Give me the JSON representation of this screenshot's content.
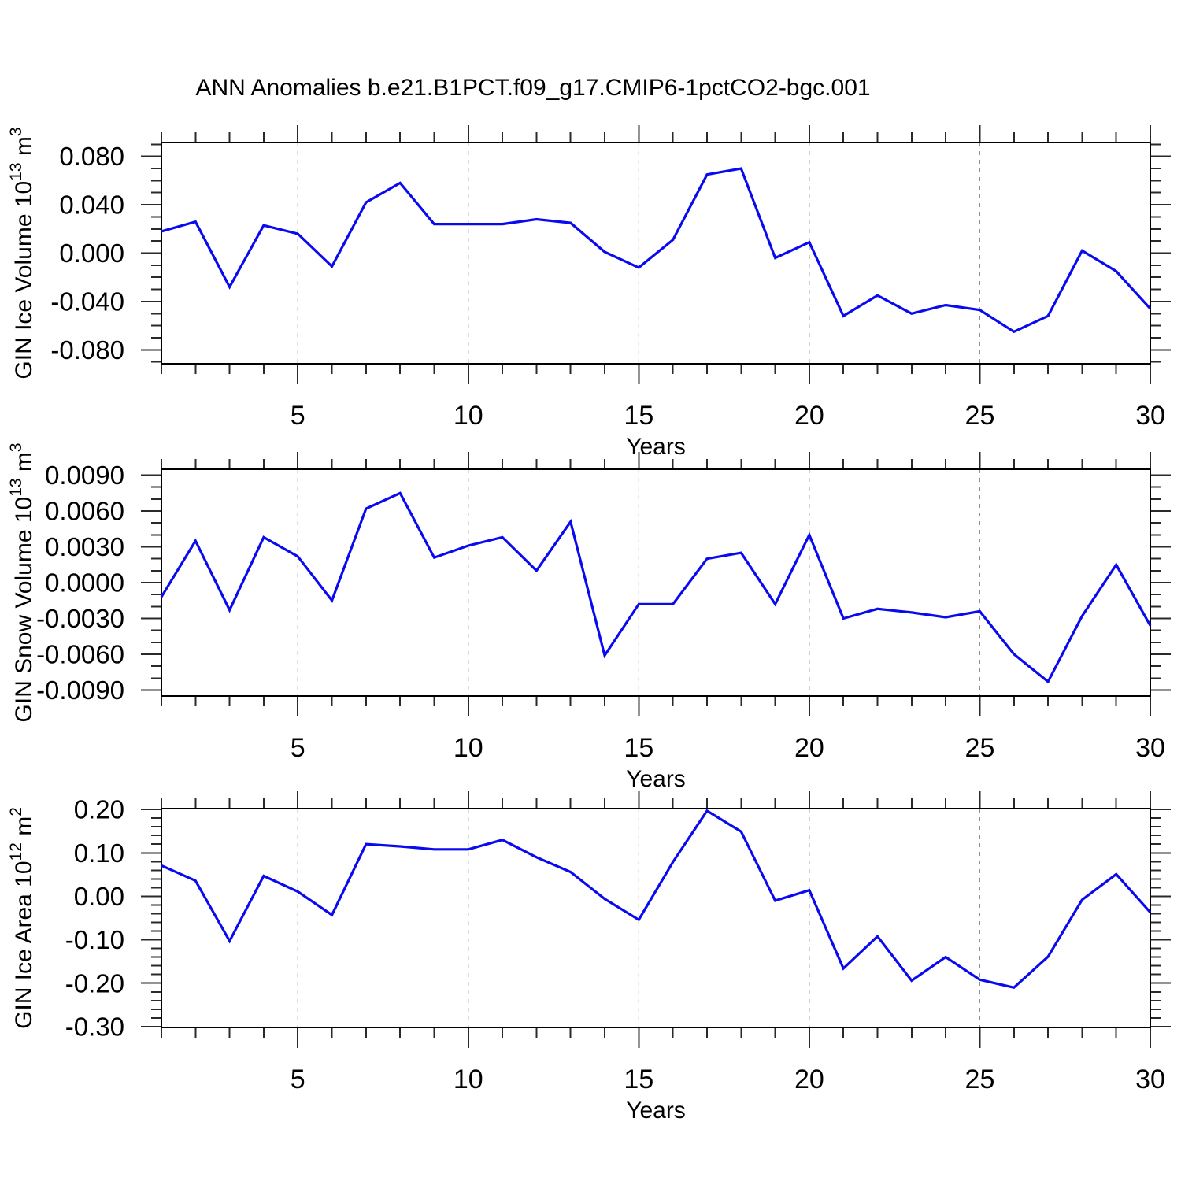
{
  "title": "ANN Anomalies b.e21.B1PCT.f09_g17.CMIP6-1pctCO2-bgc.001",
  "colors": {
    "line": "#0a0af0",
    "grid": "#888888",
    "axis": "#000000",
    "tick": "#2a2a2a",
    "text": "#000000",
    "background": "#ffffff"
  },
  "chart_data": [
    {
      "type": "line",
      "id": "gin-ice-volume",
      "title": "",
      "xlabel": "Years",
      "ylabel": "GIN Ice Volume 10^13 m^3",
      "ylabel_parts": [
        {
          "text": "GIN Ice Volume 10",
          "sup": false
        },
        {
          "text": "13",
          "sup": true
        },
        {
          "text": " m",
          "sup": false
        },
        {
          "text": "3",
          "sup": true
        }
      ],
      "x": [
        1,
        2,
        3,
        4,
        5,
        6,
        7,
        8,
        9,
        10,
        11,
        12,
        13,
        14,
        15,
        16,
        17,
        18,
        19,
        20,
        21,
        22,
        23,
        24,
        25,
        26,
        27,
        28,
        29,
        30
      ],
      "values": [
        0.018,
        0.026,
        -0.028,
        0.023,
        0.016,
        -0.011,
        0.042,
        0.058,
        0.024,
        0.024,
        0.024,
        0.028,
        0.025,
        0.001,
        -0.012,
        0.011,
        0.065,
        0.07,
        -0.004,
        0.009,
        -0.052,
        -0.035,
        -0.05,
        -0.043,
        -0.047,
        -0.065,
        -0.052,
        0.002,
        -0.015,
        -0.046
      ],
      "xlim": [
        1,
        30
      ],
      "ylim": [
        -0.0915,
        0.0915
      ],
      "xticks": {
        "major": [
          5,
          10,
          15,
          20,
          25,
          30
        ],
        "labels": [
          "5",
          "10",
          "15",
          "20",
          "25",
          "30"
        ],
        "minor_step": 1
      },
      "yticks": {
        "major": [
          0.08,
          0.04,
          0.0,
          -0.04,
          -0.08
        ],
        "labels": [
          "0.080",
          "0.040",
          "0.000",
          "-0.040",
          "-0.080"
        ],
        "minor_step": 0.01
      },
      "grid_x": [
        5,
        10,
        15,
        20,
        25
      ],
      "grid_on": true,
      "legend": null
    },
    {
      "type": "line",
      "id": "gin-snow-volume",
      "title": "",
      "xlabel": "Years",
      "ylabel": "GIN Snow Volume 10^13 m^3",
      "ylabel_parts": [
        {
          "text": "GIN Snow Volume 10",
          "sup": false
        },
        {
          "text": "13",
          "sup": true
        },
        {
          "text": " m",
          "sup": false
        },
        {
          "text": "3",
          "sup": true
        }
      ],
      "x": [
        1,
        2,
        3,
        4,
        5,
        6,
        7,
        8,
        9,
        10,
        11,
        12,
        13,
        14,
        15,
        16,
        17,
        18,
        19,
        20,
        21,
        22,
        23,
        24,
        25,
        26,
        27,
        28,
        29,
        30
      ],
      "values": [
        -0.0012,
        0.0035,
        -0.0023,
        0.0038,
        0.0022,
        -0.0015,
        0.0062,
        0.0075,
        0.0021,
        0.0031,
        0.0038,
        0.001,
        0.0051,
        -0.0061,
        -0.0018,
        -0.0018,
        0.002,
        0.0025,
        -0.0018,
        0.004,
        -0.003,
        -0.0022,
        -0.0025,
        -0.0029,
        -0.0024,
        -0.006,
        -0.0083,
        -0.0028,
        0.0015,
        -0.0036
      ],
      "xlim": [
        1,
        30
      ],
      "ylim": [
        -0.0095,
        0.0095
      ],
      "xticks": {
        "major": [
          5,
          10,
          15,
          20,
          25,
          30
        ],
        "labels": [
          "5",
          "10",
          "15",
          "20",
          "25",
          "30"
        ],
        "minor_step": 1
      },
      "yticks": {
        "major": [
          0.009,
          0.006,
          0.003,
          0.0,
          -0.003,
          -0.006,
          -0.009
        ],
        "labels": [
          "0.0090",
          "0.0060",
          "0.0030",
          "0.0000",
          "-0.0030",
          "-0.0060",
          "-0.0090"
        ],
        "minor_step": 0.001
      },
      "grid_x": [
        5,
        10,
        15,
        20,
        25
      ],
      "grid_on": true,
      "legend": null
    },
    {
      "type": "line",
      "id": "gin-ice-area",
      "title": "",
      "xlabel": "Years",
      "ylabel": "GIN Ice Area 10^12 m^2",
      "ylabel_parts": [
        {
          "text": "GIN Ice Area 10",
          "sup": false
        },
        {
          "text": "12",
          "sup": true
        },
        {
          "text": " m",
          "sup": false
        },
        {
          "text": "2",
          "sup": true
        }
      ],
      "x": [
        1,
        2,
        3,
        4,
        5,
        6,
        7,
        8,
        9,
        10,
        11,
        12,
        13,
        14,
        15,
        16,
        17,
        18,
        19,
        20,
        21,
        22,
        23,
        24,
        25,
        26,
        27,
        28,
        29,
        30
      ],
      "values": [
        0.071,
        0.036,
        -0.103,
        0.047,
        0.011,
        -0.043,
        0.12,
        0.115,
        0.108,
        0.108,
        0.13,
        0.09,
        0.056,
        -0.006,
        -0.054,
        0.079,
        0.197,
        0.149,
        -0.01,
        0.014,
        -0.166,
        -0.092,
        -0.194,
        -0.14,
        -0.192,
        -0.21,
        -0.139,
        -0.008,
        0.051,
        -0.037
      ],
      "xlim": [
        1,
        30
      ],
      "ylim": [
        -0.302,
        0.202
      ],
      "xticks": {
        "major": [
          5,
          10,
          15,
          20,
          25,
          30
        ],
        "labels": [
          "5",
          "10",
          "15",
          "20",
          "25",
          "30"
        ],
        "minor_step": 1
      },
      "yticks": {
        "major": [
          0.2,
          0.1,
          0.0,
          -0.1,
          -0.2,
          -0.3
        ],
        "labels": [
          "0.20",
          "0.10",
          "0.00",
          "-0.10",
          "-0.20",
          "-0.30"
        ],
        "minor_step": 0.02
      },
      "grid_x": [
        5,
        10,
        15,
        20,
        25
      ],
      "grid_on": true,
      "legend": null
    }
  ]
}
